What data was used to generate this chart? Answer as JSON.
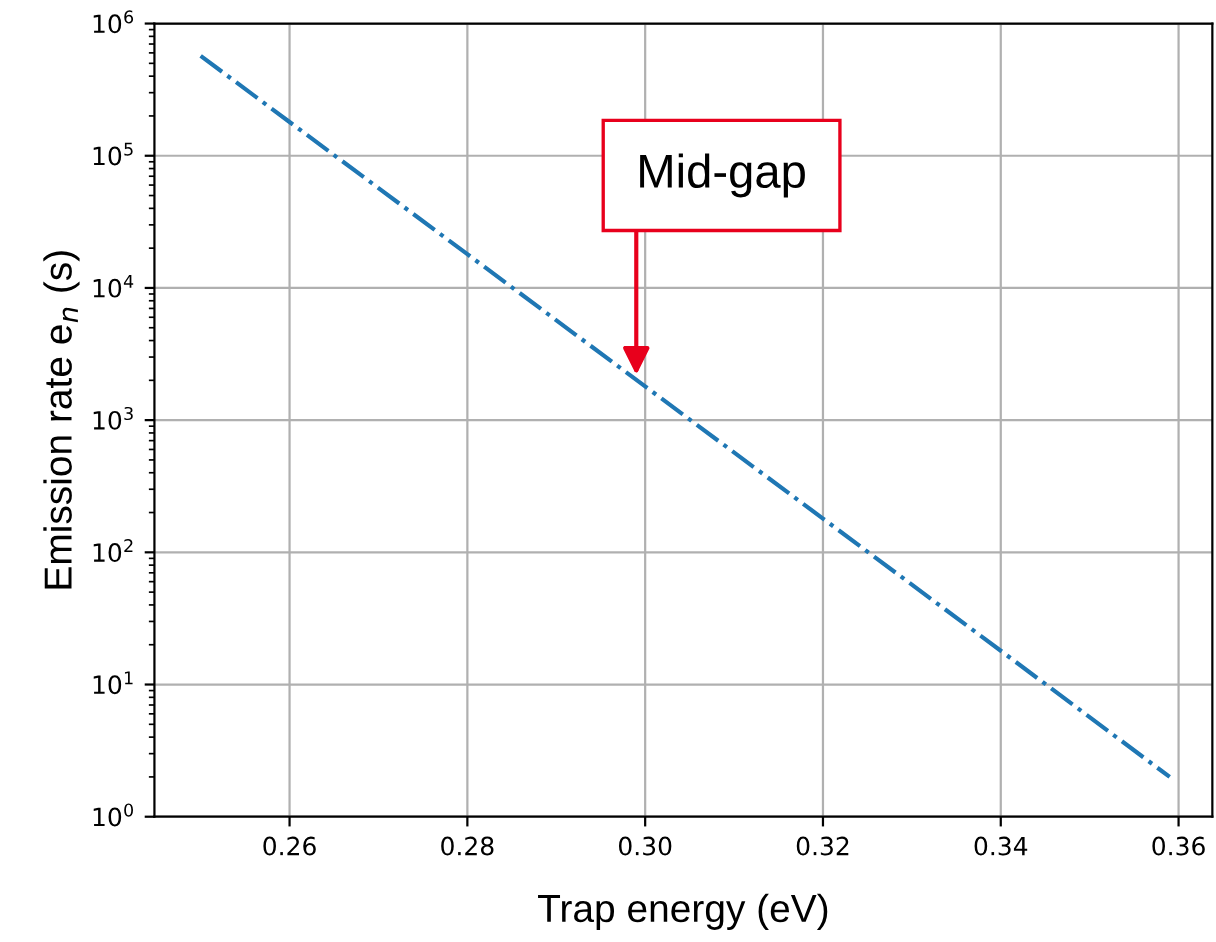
{
  "chart_data": {
    "type": "line",
    "xlabel": "Trap energy (eV)",
    "ylabel": "Emission rate e$_{n}$ (s)",
    "x": [
      0.25,
      0.26,
      0.28,
      0.3,
      0.32,
      0.34,
      0.359
    ],
    "series": [
      {
        "color": "#1f77b4",
        "values": [
          570000,
          180000,
          18000,
          1800,
          180,
          18,
          2.0
        ]
      }
    ],
    "line_style": "dashdot",
    "log": "y",
    "grid": true,
    "xlim": [
      0.2448,
      0.3638
    ],
    "xticks": [
      {
        "value": 0.26,
        "label": "0.26"
      },
      {
        "value": 0.28,
        "label": "0.28"
      },
      {
        "value": 0.3,
        "label": "0.30"
      },
      {
        "value": 0.32,
        "label": "0.32"
      },
      {
        "value": 0.34,
        "label": "0.34"
      },
      {
        "value": 0.36,
        "label": "0.36"
      }
    ],
    "ylim": [
      1,
      1000000
    ],
    "yticks": [
      {
        "value": 1,
        "label": "10$^{0}$"
      },
      {
        "value": 10,
        "label": "10$^{1}$"
      },
      {
        "value": 100,
        "label": "10$^{2}$"
      },
      {
        "value": 1000,
        "label": "10$^{3}$"
      },
      {
        "value": 10000,
        "label": "10$^{4}$"
      },
      {
        "value": 100000,
        "label": "10$^{5}$"
      },
      {
        "value": 1000000,
        "label": "10$^{6}$"
      }
    ],
    "annotations": [
      {
        "text": "Mid-gap",
        "x": 0.299,
        "y": 2200
      }
    ]
  }
}
